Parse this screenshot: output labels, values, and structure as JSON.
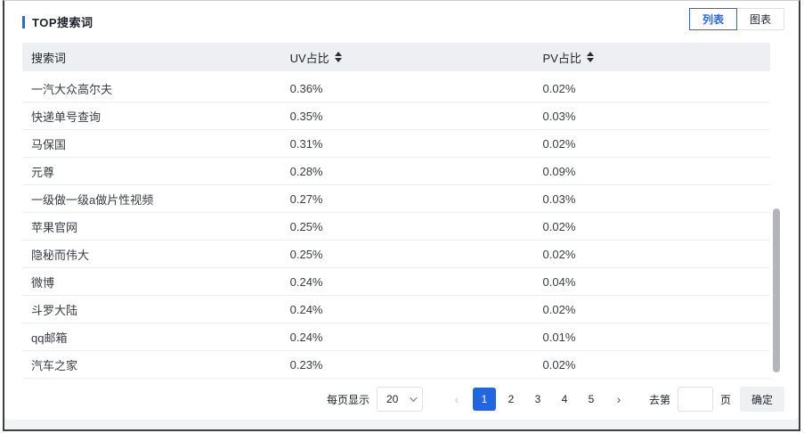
{
  "panel": {
    "title": "TOP搜索词",
    "view_switch": [
      {
        "label": "列表",
        "active": true
      },
      {
        "label": "图表",
        "active": false
      }
    ]
  },
  "table": {
    "columns": [
      {
        "label": "搜索词",
        "sortable": false
      },
      {
        "label": "UV占比",
        "sortable": true
      },
      {
        "label": "PV占比",
        "sortable": true
      }
    ],
    "rows": [
      {
        "term": "一汽大众高尔夫",
        "uv": "0.36%",
        "pv": "0.02%"
      },
      {
        "term": "快递单号查询",
        "uv": "0.35%",
        "pv": "0.03%"
      },
      {
        "term": "马保国",
        "uv": "0.31%",
        "pv": "0.02%"
      },
      {
        "term": "元尊",
        "uv": "0.28%",
        "pv": "0.09%"
      },
      {
        "term": "一级做一级a做片性视频",
        "uv": "0.27%",
        "pv": "0.03%"
      },
      {
        "term": "苹果官网",
        "uv": "0.25%",
        "pv": "0.02%"
      },
      {
        "term": "隐秘而伟大",
        "uv": "0.25%",
        "pv": "0.02%"
      },
      {
        "term": "微博",
        "uv": "0.24%",
        "pv": "0.04%"
      },
      {
        "term": "斗罗大陆",
        "uv": "0.24%",
        "pv": "0.02%"
      },
      {
        "term": "qq邮箱",
        "uv": "0.24%",
        "pv": "0.01%"
      },
      {
        "term": "汽车之家",
        "uv": "0.23%",
        "pv": "0.02%"
      }
    ]
  },
  "pagination": {
    "page_size_label": "每页显示",
    "page_size_value": "20",
    "prev_icon": "‹",
    "next_icon": "›",
    "pages": [
      {
        "label": "1",
        "active": true
      },
      {
        "label": "2",
        "active": false
      },
      {
        "label": "3",
        "active": false
      },
      {
        "label": "4",
        "active": false
      },
      {
        "label": "5",
        "active": false
      }
    ],
    "goto_prefix": "去第",
    "goto_suffix": "页",
    "goto_value": "",
    "confirm_label": "确定"
  },
  "colors": {
    "accent_blue": "#2468f2",
    "active_page_blue": "#2066e0",
    "header_bg": "#edeff3",
    "page_bg": "#f2f3f5"
  }
}
